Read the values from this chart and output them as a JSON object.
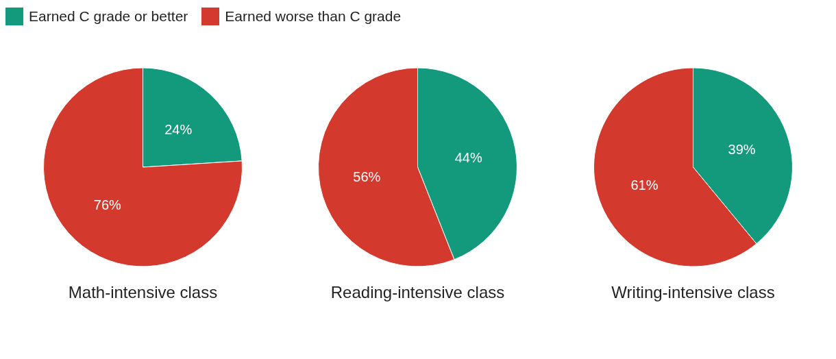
{
  "chart_data": [
    {
      "type": "pie",
      "title": "Math-intensive class",
      "categories": [
        "Earned C grade or better",
        "Earned worse than C grade"
      ],
      "values": [
        24,
        76
      ],
      "value_labels": [
        "24%",
        "76%"
      ],
      "colors": [
        "#139a7c",
        "#d3392c"
      ],
      "legend": "top right"
    },
    {
      "type": "pie",
      "title": "Reading-intensive class",
      "categories": [
        null,
        null
      ],
      "values": [
        44,
        56
      ],
      "value_labels": [
        "44%",
        "56%"
      ],
      "colors": [
        "#139a7c",
        "#d3392c"
      ]
    },
    {
      "type": "pie",
      "title": "Writing-intensive class",
      "categories": [
        null,
        null
      ],
      "values": [
        39,
        61
      ],
      "value_labels": [
        "39%",
        "61%"
      ],
      "colors": [
        "#139a7c",
        "#d3392c"
      ]
    }
  ]
}
